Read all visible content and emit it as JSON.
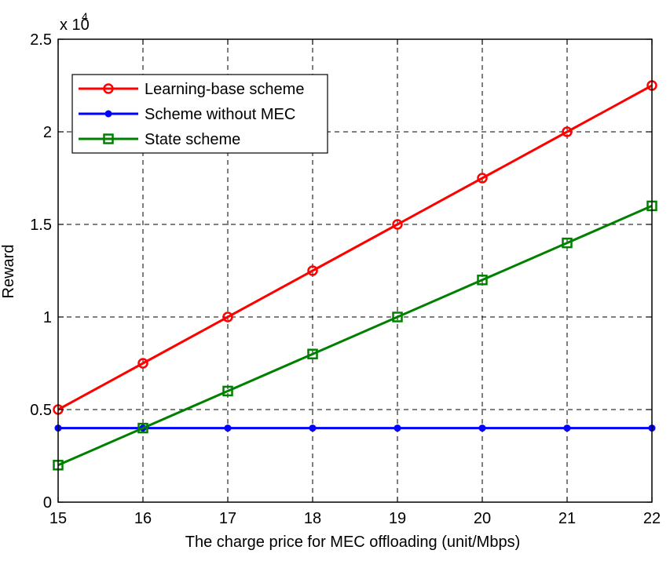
{
  "chart_data": {
    "type": "line",
    "xlabel": "The charge price for MEC offloading (unit/Mbps)",
    "ylabel": "Reward",
    "x": [
      15,
      16,
      17,
      18,
      19,
      20,
      21,
      22
    ],
    "xlim": [
      15,
      22
    ],
    "ylim": [
      0,
      2.5
    ],
    "y_scale_note": "x 10",
    "y_scale_exponent": "4",
    "xticks": [
      "15",
      "16",
      "17",
      "18",
      "19",
      "20",
      "21",
      "22"
    ],
    "yticks": [
      "0",
      "0.5",
      "1",
      "1.5",
      "2",
      "2.5"
    ],
    "grid": true,
    "legend_position": "top-left",
    "series": [
      {
        "name": "Learning-base scheme",
        "color": "#ff0000",
        "marker": "circle",
        "values": [
          0.5,
          0.75,
          1.0,
          1.25,
          1.5,
          1.75,
          2.0,
          2.25
        ]
      },
      {
        "name": "Scheme without MEC",
        "color": "#0000ff",
        "marker": "dot",
        "values": [
          0.4,
          0.4,
          0.4,
          0.4,
          0.4,
          0.4,
          0.4,
          0.4
        ]
      },
      {
        "name": "State scheme",
        "color": "#008000",
        "marker": "square",
        "values": [
          0.2,
          0.4,
          0.6,
          0.8,
          1.0,
          1.2,
          1.4,
          1.6
        ]
      }
    ]
  }
}
